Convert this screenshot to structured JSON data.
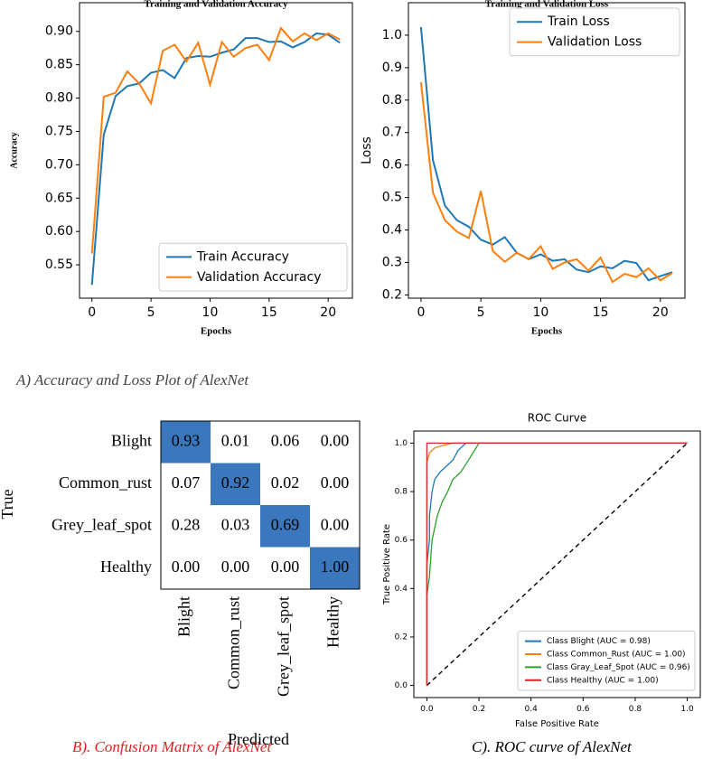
{
  "figure_captions": [
    "A)  Accuracy and Loss Plot of AlexNet",
    "B). Confusion Matrix of AlexNet",
    "C). ROC curve of AlexNet"
  ],
  "chart_data": [
    {
      "type": "line",
      "title": "Training and Validation Accuracy",
      "x_label": "Epochs",
      "y_label": "Accuracy",
      "x": [
        0,
        1,
        2,
        3,
        4,
        5,
        6,
        7,
        8,
        9,
        10,
        11,
        12,
        13,
        14,
        15,
        16,
        17,
        18,
        19,
        20,
        21
      ],
      "series": [
        {
          "name": "Train Accuracy",
          "color": "#1f77b4",
          "values": [
            0.52,
            0.745,
            0.803,
            0.818,
            0.822,
            0.838,
            0.842,
            0.83,
            0.86,
            0.863,
            0.862,
            0.868,
            0.873,
            0.89,
            0.89,
            0.884,
            0.885,
            0.876,
            0.884,
            0.897,
            0.895,
            0.883
          ]
        },
        {
          "name": "Validation Accuracy",
          "color": "#ff7f0e",
          "values": [
            0.567,
            0.802,
            0.808,
            0.84,
            0.822,
            0.792,
            0.871,
            0.88,
            0.855,
            0.883,
            0.82,
            0.884,
            0.862,
            0.875,
            0.88,
            0.857,
            0.905,
            0.885,
            0.897,
            0.887,
            0.897,
            0.888
          ]
        }
      ],
      "xlim": [
        -1.05,
        22.05
      ],
      "xticks": [
        0,
        5,
        10,
        15,
        20
      ],
      "ylim": [
        0.5,
        0.943
      ],
      "yticks": [
        0.55,
        {
          "value": 0.6,
          "label": "0.60"
        },
        0.65,
        {
          "value": 0.7,
          "label": "0.70"
        },
        0.75,
        {
          "value": 0.8,
          "label": "0.80"
        },
        0.85,
        {
          "value": 0.9,
          "label": "0.90"
        }
      ],
      "legend": "lower right"
    },
    {
      "type": "line",
      "title": "Training and Validation Loss",
      "x_label": "Epochs",
      "y_label": "Loss",
      "x": [
        0,
        1,
        2,
        3,
        4,
        5,
        6,
        7,
        8,
        9,
        10,
        11,
        12,
        13,
        14,
        15,
        16,
        17,
        18,
        19,
        20,
        21
      ],
      "series": [
        {
          "name": "Train Loss",
          "color": "#1f77b4",
          "values": [
            1.025,
            0.615,
            0.475,
            0.43,
            0.41,
            0.37,
            0.355,
            0.378,
            0.33,
            0.31,
            0.325,
            0.305,
            0.31,
            0.278,
            0.27,
            0.288,
            0.282,
            0.305,
            0.298,
            0.245,
            0.258,
            0.27
          ]
        },
        {
          "name": "Validation Loss",
          "color": "#ff7f0e",
          "values": [
            0.855,
            0.515,
            0.43,
            0.395,
            0.375,
            0.52,
            0.335,
            0.302,
            0.33,
            0.31,
            0.35,
            0.28,
            0.3,
            0.31,
            0.275,
            0.315,
            0.24,
            0.265,
            0.255,
            0.282,
            0.245,
            0.268
          ]
        }
      ],
      "xlim": [
        -1.05,
        22.05
      ],
      "xticks": [
        0,
        5,
        10,
        15,
        20
      ],
      "ylim": [
        0.19,
        1.1
      ],
      "yticks": [
        0.2,
        0.3,
        0.4,
        0.5,
        0.6,
        0.7,
        0.8,
        0.9,
        {
          "value": 1.0,
          "label": "1.0"
        }
      ],
      "legend": "upper right"
    },
    {
      "type": "heatmap",
      "x_label": "Predicted",
      "y_label": "True",
      "color": "#3a77bd",
      "rows": [
        "Blight",
        "Common_rust",
        "Grey_leaf_spot",
        "Healthy"
      ],
      "cols": [
        "Blight",
        "Common_rust",
        "Grey_leaf_spot",
        "Healthy"
      ],
      "values": [
        [
          0.93,
          0.01,
          0.06,
          0.0
        ],
        [
          0.07,
          0.92,
          0.02,
          0.0
        ],
        [
          0.28,
          0.03,
          0.69,
          0.0
        ],
        [
          0.0,
          0.0,
          0.0,
          1.0
        ]
      ],
      "value_labels": [
        [
          "0.93",
          "0.01",
          "0.06",
          "0.00"
        ],
        [
          "0.07",
          "0.92",
          "0.02",
          "0.00"
        ],
        [
          "0.28",
          "0.03",
          "0.69",
          "0.00"
        ],
        [
          "0.00",
          "0.00",
          "0.00",
          "1.00"
        ]
      ]
    },
    {
      "type": "line",
      "title": "ROC Curve",
      "x_label": "False Positive Rate",
      "y_label": "True Positive Rate",
      "series": [
        {
          "name": "Class Blight (AUC = 0.98)",
          "color": "#1f77b4",
          "x": [
            0,
            0,
            0.01,
            0.01,
            0.02,
            0.03,
            0.05,
            0.07,
            0.1,
            0.12,
            0.15,
            1
          ],
          "values": [
            0,
            0.5,
            0.6,
            0.7,
            0.8,
            0.85,
            0.88,
            0.9,
            0.93,
            0.97,
            1,
            1
          ]
        },
        {
          "name": "Class Common_Rust (AUC = 1.00)",
          "color": "#ff7f0e",
          "x": [
            0,
            0,
            0.01,
            0.03,
            0.06,
            0.1,
            1
          ],
          "values": [
            0,
            0.92,
            0.96,
            0.98,
            0.99,
            1,
            1
          ]
        },
        {
          "name": "Class Gray_Leaf_Spot (AUC = 0.96)",
          "color": "#2ca02c",
          "x": [
            0,
            0,
            0.01,
            0.02,
            0.04,
            0.06,
            0.08,
            0.1,
            0.13,
            0.16,
            0.2,
            1
          ],
          "values": [
            0,
            0.37,
            0.45,
            0.6,
            0.7,
            0.76,
            0.8,
            0.85,
            0.88,
            0.93,
            1,
            1
          ]
        },
        {
          "name": "Class Healthy (AUC = 1.00)",
          "color": "#d62728",
          "x": [
            0,
            0,
            1
          ],
          "values": [
            0,
            1,
            1
          ]
        }
      ],
      "xlim": [
        -0.05,
        1.05
      ],
      "xticks": [
        {
          "value": 0,
          "label": "0.0"
        },
        0.2,
        0.4,
        0.6,
        0.8,
        {
          "value": 1,
          "label": "1.0"
        }
      ],
      "ylim": [
        -0.05,
        1.05
      ],
      "yticks": [
        {
          "value": 0,
          "label": "0.0"
        },
        0.2,
        0.4,
        0.6,
        0.8,
        {
          "value": 1,
          "label": "1.0"
        }
      ],
      "legend": "lower right",
      "diagonal": true
    }
  ]
}
